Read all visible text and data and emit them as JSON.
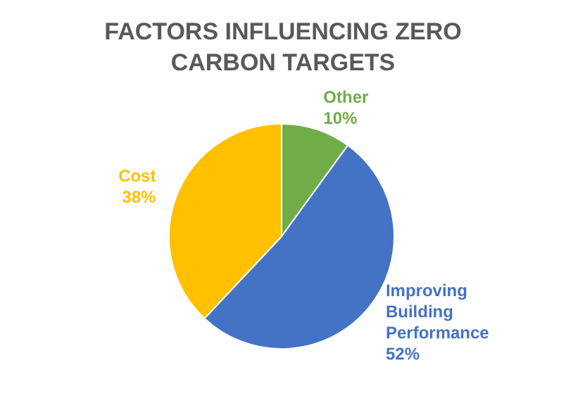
{
  "chart_data": {
    "type": "pie",
    "title": "FACTORS INFLUENCING ZERO CARBON TARGETS",
    "categories": [
      "Other",
      "Improving Building Performance",
      "Cost"
    ],
    "values": [
      10,
      52,
      38
    ],
    "colors": [
      "#70ad47",
      "#4472c4",
      "#ffc000"
    ],
    "value_labels": [
      "10%",
      "52%",
      "38%"
    ]
  }
}
